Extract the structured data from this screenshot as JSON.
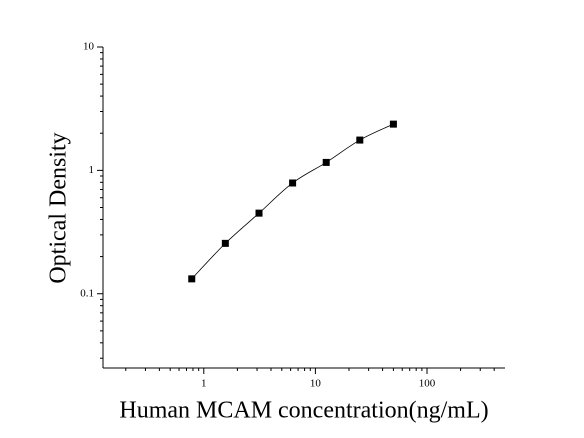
{
  "chart_data": {
    "type": "scatter",
    "x_label": "Human MCAM concentration(ng/mL)",
    "y_label": "Optical Density",
    "x_scale": "log",
    "y_scale": "log",
    "xlim": [
      0.125,
      500
    ],
    "ylim": [
      0.025,
      10
    ],
    "xticks": [
      1,
      10,
      100
    ],
    "yticks": [
      0.1,
      1,
      10
    ],
    "series": [
      {
        "color": "#000000",
        "x": [
          0.78,
          1.56,
          3.125,
          6.25,
          12.5,
          25,
          50
        ],
        "values": [
          0.132,
          0.256,
          0.45,
          0.79,
          1.16,
          1.76,
          2.37
        ]
      }
    ]
  }
}
